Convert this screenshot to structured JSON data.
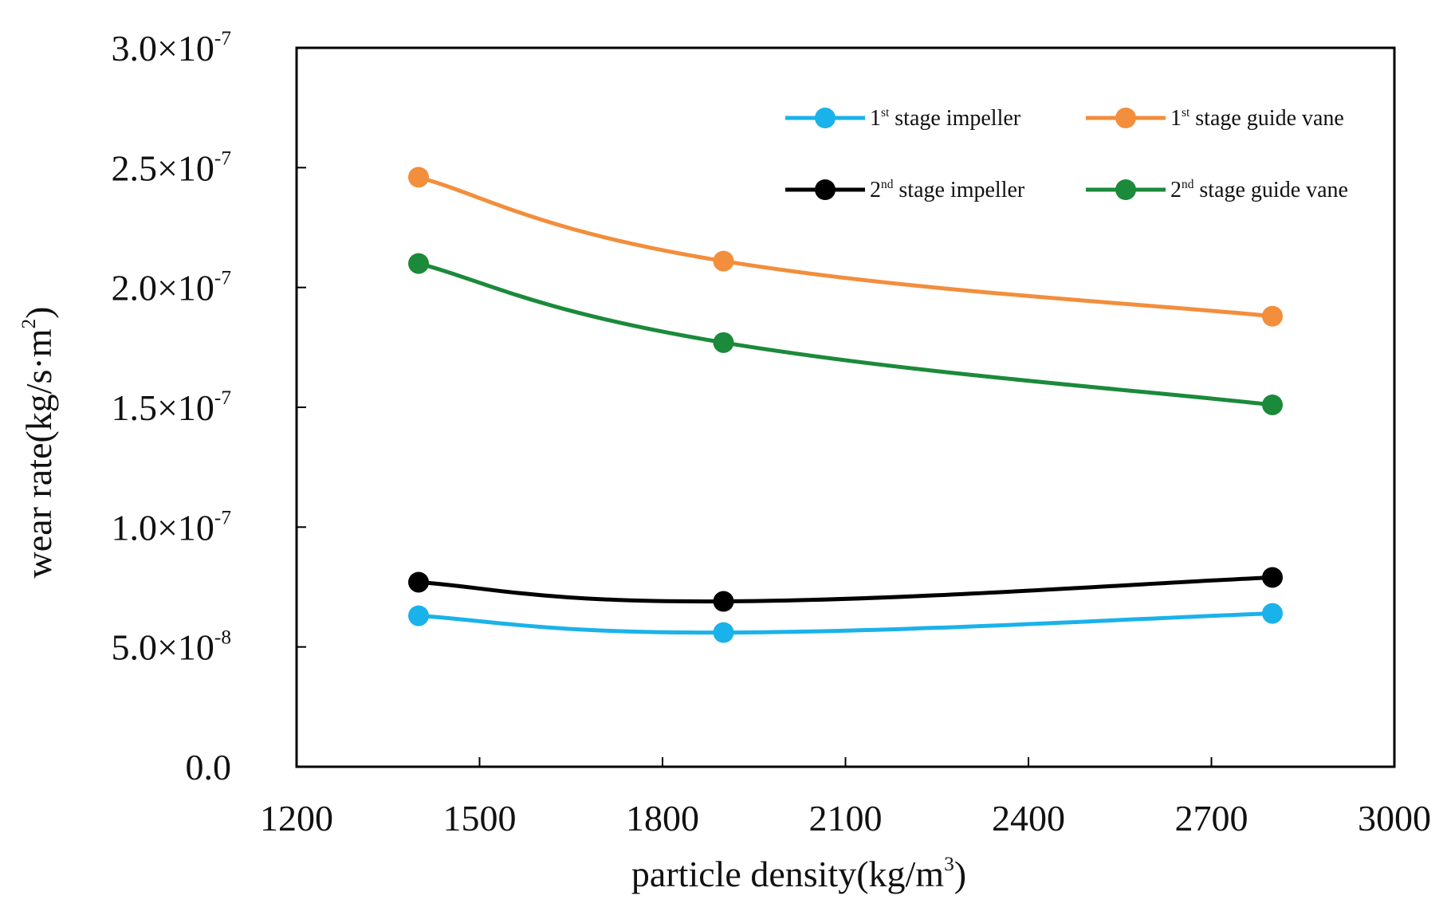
{
  "chart_data": {
    "type": "line",
    "title": "",
    "xlabel": "particle density(kg/m",
    "xlabel_sup": "3",
    "xlabel_suffix": ")",
    "ylabel": "wear rate(kg/s·m",
    "ylabel_sup": "2",
    "ylabel_suffix": ")",
    "xlim": [
      1200,
      3000
    ],
    "ylim": [
      0,
      3e-07
    ],
    "grid": false,
    "legend_position": "top-right",
    "x_ticks": [
      {
        "value": 1200,
        "label": "1200"
      },
      {
        "value": 1500,
        "label": "1500"
      },
      {
        "value": 1800,
        "label": "1800"
      },
      {
        "value": 2100,
        "label": "2100"
      },
      {
        "value": 2400,
        "label": "2400"
      },
      {
        "value": 2700,
        "label": "2700"
      },
      {
        "value": 3000,
        "label": "3000"
      }
    ],
    "y_ticks": [
      {
        "value": 0,
        "mantissa": "0.0",
        "exp": ""
      },
      {
        "value": 5e-08,
        "mantissa": "5.0×10",
        "exp": "-8"
      },
      {
        "value": 1e-07,
        "mantissa": "1.0×10",
        "exp": "-7"
      },
      {
        "value": 1.5e-07,
        "mantissa": "1.5×10",
        "exp": "-7"
      },
      {
        "value": 2e-07,
        "mantissa": "2.0×10",
        "exp": "-7"
      },
      {
        "value": 2.5e-07,
        "mantissa": "2.5×10",
        "exp": "-7"
      },
      {
        "value": 3e-07,
        "mantissa": "3.0×10",
        "exp": "-7"
      }
    ],
    "x": [
      1400,
      1900,
      2800
    ],
    "series": [
      {
        "name": "1st stage impeller",
        "ord": "1",
        "ord_sup": "st",
        "label_rest": " stage impeller",
        "color": "#1ab2ea",
        "values": [
          6.3e-08,
          5.6e-08,
          6.4e-08
        ]
      },
      {
        "name": "1st stage guide vane",
        "ord": "1",
        "ord_sup": "st",
        "label_rest": " stage guide vane",
        "color": "#f28e3c",
        "values": [
          2.46e-07,
          2.11e-07,
          1.88e-07
        ]
      },
      {
        "name": "2nd stage impeller",
        "ord": "2",
        "ord_sup": "nd",
        "label_rest": " stage impeller",
        "color": "#000000",
        "values": [
          7.7e-08,
          6.9e-08,
          7.9e-08
        ]
      },
      {
        "name": "2nd stage guide vane",
        "ord": "2",
        "ord_sup": "nd",
        "label_rest": " stage guide vane",
        "color": "#1b8a3a",
        "values": [
          2.1e-07,
          1.77e-07,
          1.51e-07
        ]
      }
    ]
  }
}
